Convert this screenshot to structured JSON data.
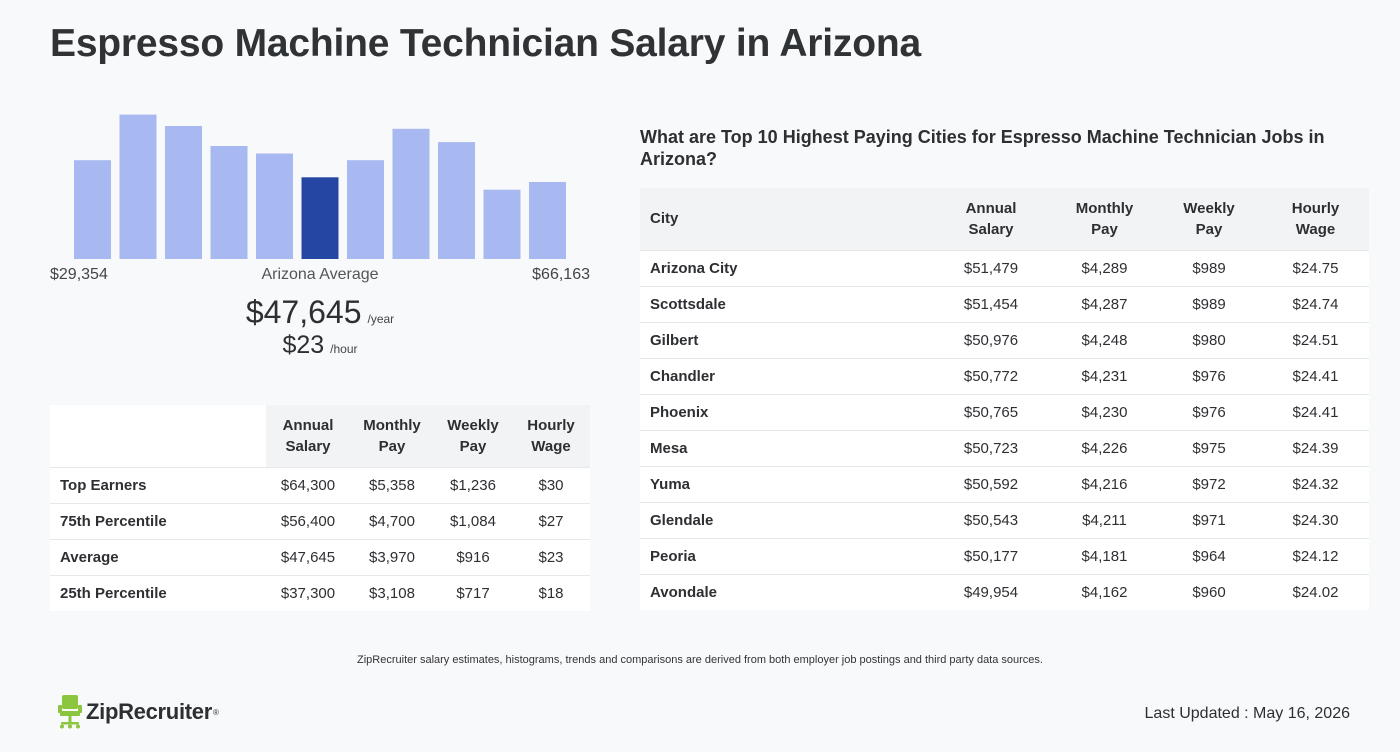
{
  "page_title": "Espresso Machine Technician Salary in Arizona",
  "histogram": {
    "min_label": "$29,354",
    "center_label": "Arizona Average",
    "max_label": "$66,163",
    "bar_color": "#a8b8f0",
    "highlight_color": "#2547a3",
    "highlight_index": 5
  },
  "chart_data": {
    "type": "bar",
    "title": "",
    "xlabel": "",
    "ylabel": "",
    "categories": [
      "1",
      "2",
      "3",
      "4",
      "5",
      "6",
      "7",
      "8",
      "9",
      "10",
      "11"
    ],
    "values": [
      104,
      152,
      140,
      119,
      111,
      86,
      104,
      137,
      123,
      73,
      81
    ],
    "ylim": [
      0,
      160
    ]
  },
  "average": {
    "year_amount": "$47,645",
    "year_unit": "/year",
    "hour_amount": "$23",
    "hour_unit": "/hour"
  },
  "percentile_table": {
    "headers": [
      "Annual\nSalary",
      "Monthly\nPay",
      "Weekly\nPay",
      "Hourly\nWage"
    ],
    "header_lines": [
      [
        "Annual",
        "Salary"
      ],
      [
        "Monthly",
        "Pay"
      ],
      [
        "Weekly",
        "Pay"
      ],
      [
        "Hourly",
        "Wage"
      ]
    ],
    "rows": [
      {
        "label": "Top Earners",
        "annual": "$64,300",
        "monthly": "$5,358",
        "weekly": "$1,236",
        "hourly": "$30"
      },
      {
        "label": "75th Percentile",
        "annual": "$56,400",
        "monthly": "$4,700",
        "weekly": "$1,084",
        "hourly": "$27"
      },
      {
        "label": "Average",
        "annual": "$47,645",
        "monthly": "$3,970",
        "weekly": "$916",
        "hourly": "$23"
      },
      {
        "label": "25th Percentile",
        "annual": "$37,300",
        "monthly": "$3,108",
        "weekly": "$717",
        "hourly": "$18"
      }
    ]
  },
  "cities": {
    "heading": "What are Top 10 Highest Paying Cities for Espresso Machine Technician Jobs in Arizona?",
    "city_header": "City",
    "header_lines": [
      [
        "Annual",
        "Salary"
      ],
      [
        "Monthly",
        "Pay"
      ],
      [
        "Weekly",
        "Pay"
      ],
      [
        "Hourly",
        "Wage"
      ]
    ],
    "rows": [
      {
        "city": "Arizona City",
        "annual": "$51,479",
        "monthly": "$4,289",
        "weekly": "$989",
        "hourly": "$24.75"
      },
      {
        "city": "Scottsdale",
        "annual": "$51,454",
        "monthly": "$4,287",
        "weekly": "$989",
        "hourly": "$24.74"
      },
      {
        "city": "Gilbert",
        "annual": "$50,976",
        "monthly": "$4,248",
        "weekly": "$980",
        "hourly": "$24.51"
      },
      {
        "city": "Chandler",
        "annual": "$50,772",
        "monthly": "$4,231",
        "weekly": "$976",
        "hourly": "$24.41"
      },
      {
        "city": "Phoenix",
        "annual": "$50,765",
        "monthly": "$4,230",
        "weekly": "$976",
        "hourly": "$24.41"
      },
      {
        "city": "Mesa",
        "annual": "$50,723",
        "monthly": "$4,226",
        "weekly": "$975",
        "hourly": "$24.39"
      },
      {
        "city": "Yuma",
        "annual": "$50,592",
        "monthly": "$4,216",
        "weekly": "$972",
        "hourly": "$24.32"
      },
      {
        "city": "Glendale",
        "annual": "$50,543",
        "monthly": "$4,211",
        "weekly": "$971",
        "hourly": "$24.30"
      },
      {
        "city": "Peoria",
        "annual": "$50,177",
        "monthly": "$4,181",
        "weekly": "$964",
        "hourly": "$24.12"
      },
      {
        "city": "Avondale",
        "annual": "$49,954",
        "monthly": "$4,162",
        "weekly": "$960",
        "hourly": "$24.02"
      }
    ]
  },
  "disclaimer": "ZipRecruiter salary estimates, histograms, trends and comparisons are derived from both employer job postings and third party data sources.",
  "logo": {
    "text": "ZipRecruiter",
    "icon": "chair-icon",
    "icon_color": "#8cc63f"
  },
  "last_updated": "Last Updated : May 16, 2026"
}
